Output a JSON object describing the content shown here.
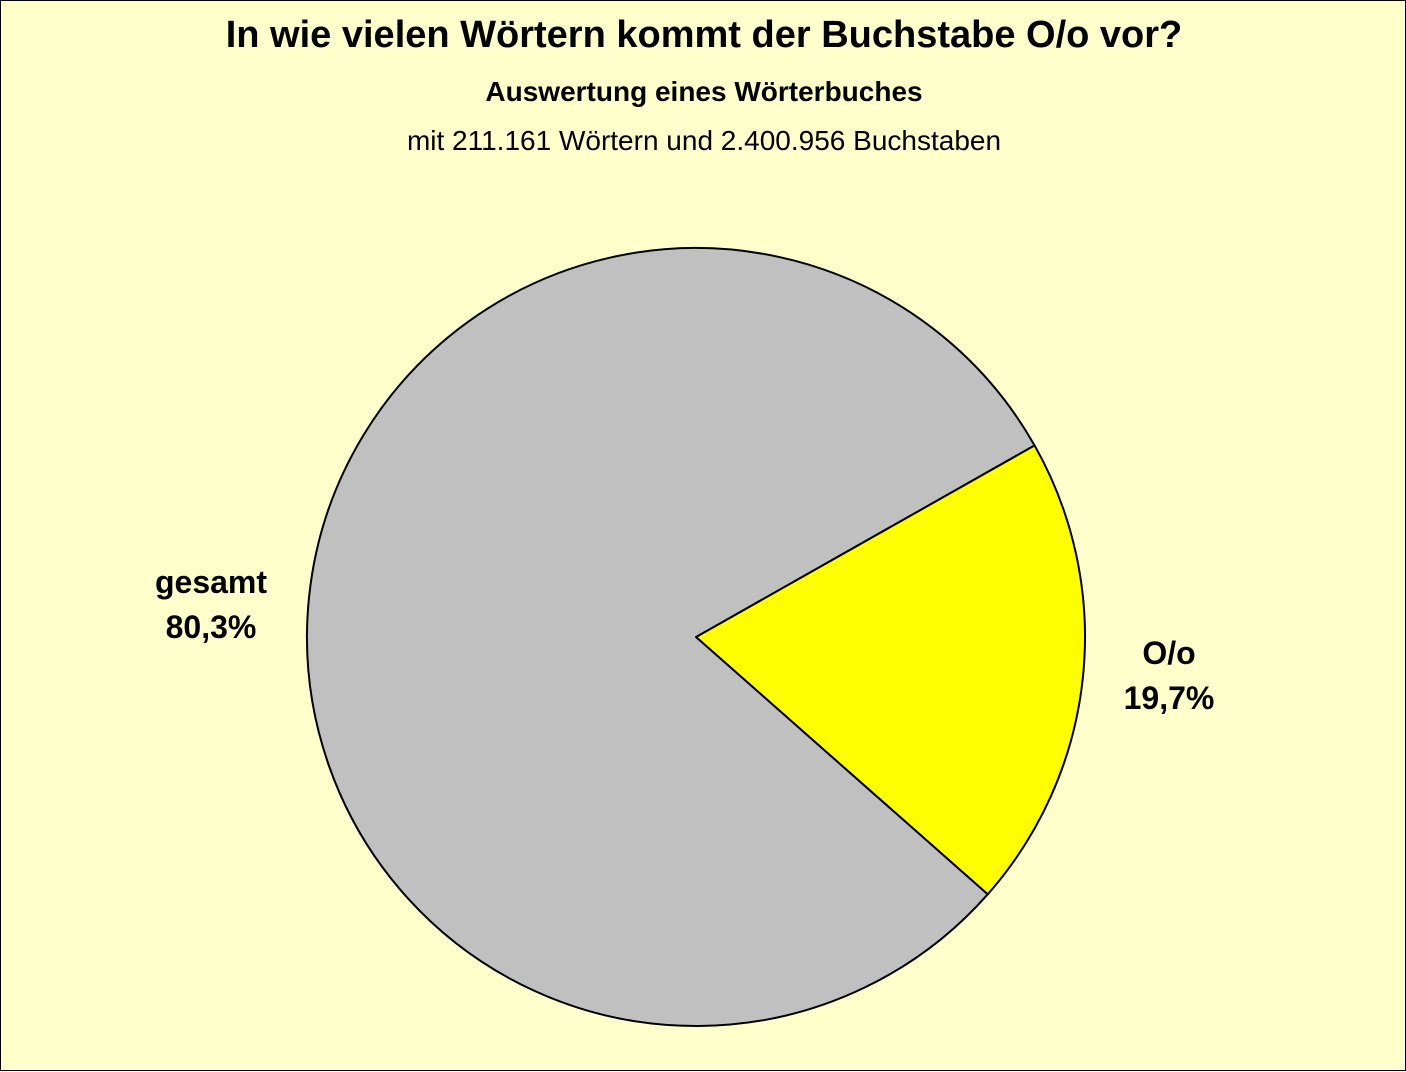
{
  "chart_data": {
    "type": "pie",
    "title": "In wie vielen Wörtern kommt der Buchstabe O/o vor?",
    "subtitle": "Auswertung eines Wörterbuches",
    "subtitle2": "mit 211.161 Wörtern und 2.400.956 Buchstaben",
    "slices": [
      {
        "name": "O/o",
        "value": 19.7,
        "label": "19,7%",
        "color": "#ffff00"
      },
      {
        "name": "gesamt",
        "value": 80.3,
        "label": "80,3%",
        "color": "#c0c0c0"
      }
    ],
    "background_color": "#ffffcc"
  }
}
